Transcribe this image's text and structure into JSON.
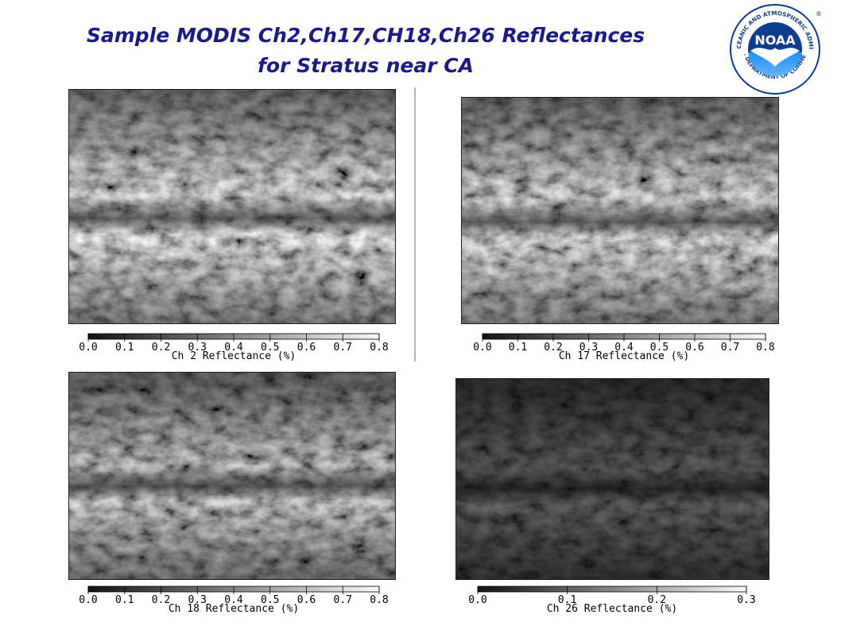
{
  "header": {
    "title_line1": "Sample MODIS Ch2,Ch17,CH18,Ch26 Reflectances",
    "title_line2": "for  Stratus near CA"
  },
  "logo": {
    "text": "NOAA",
    "ring_text": "NATIONAL OCEANIC AND ATMOSPHERIC ADMINISTRATION",
    "ring_text_bottom": "U.S. DEPARTMENT OF COMMERCE",
    "colors": {
      "blue_dark": "#0b3d91",
      "blue_light": "#1e90ff",
      "gull": "#ffffff"
    }
  },
  "panels": [
    {
      "id": "ch2",
      "colorbar": {
        "label": "Ch 2 Reflectance (%)",
        "ticks": [
          "0.0",
          "0.1",
          "0.2",
          "0.3",
          "0.4",
          "0.5",
          "0.6",
          "0.7",
          "0.8"
        ]
      },
      "image": {
        "brightness": 1.0,
        "band": "visible"
      }
    },
    {
      "id": "ch17",
      "colorbar": {
        "label": "Ch 17 Reflectance (%)",
        "ticks": [
          "0.0",
          "0.1",
          "0.2",
          "0.3",
          "0.4",
          "0.5",
          "0.6",
          "0.7",
          "0.8"
        ]
      },
      "image": {
        "brightness": 0.95,
        "band": "visible"
      }
    },
    {
      "id": "ch18",
      "colorbar": {
        "label": "Ch 18 Reflectance (%)",
        "ticks": [
          "0.0",
          "0.1",
          "0.2",
          "0.3",
          "0.4",
          "0.5",
          "0.6",
          "0.7",
          "0.8"
        ]
      },
      "image": {
        "brightness": 0.75,
        "band": "absorbing"
      }
    },
    {
      "id": "ch26",
      "colorbar": {
        "label": "Ch 26 Reflectance (%)",
        "ticks": [
          "0.0",
          "0.1",
          "0.2",
          "0.3"
        ]
      },
      "image": {
        "brightness": 0.35,
        "band": "cirrus"
      }
    }
  ]
}
